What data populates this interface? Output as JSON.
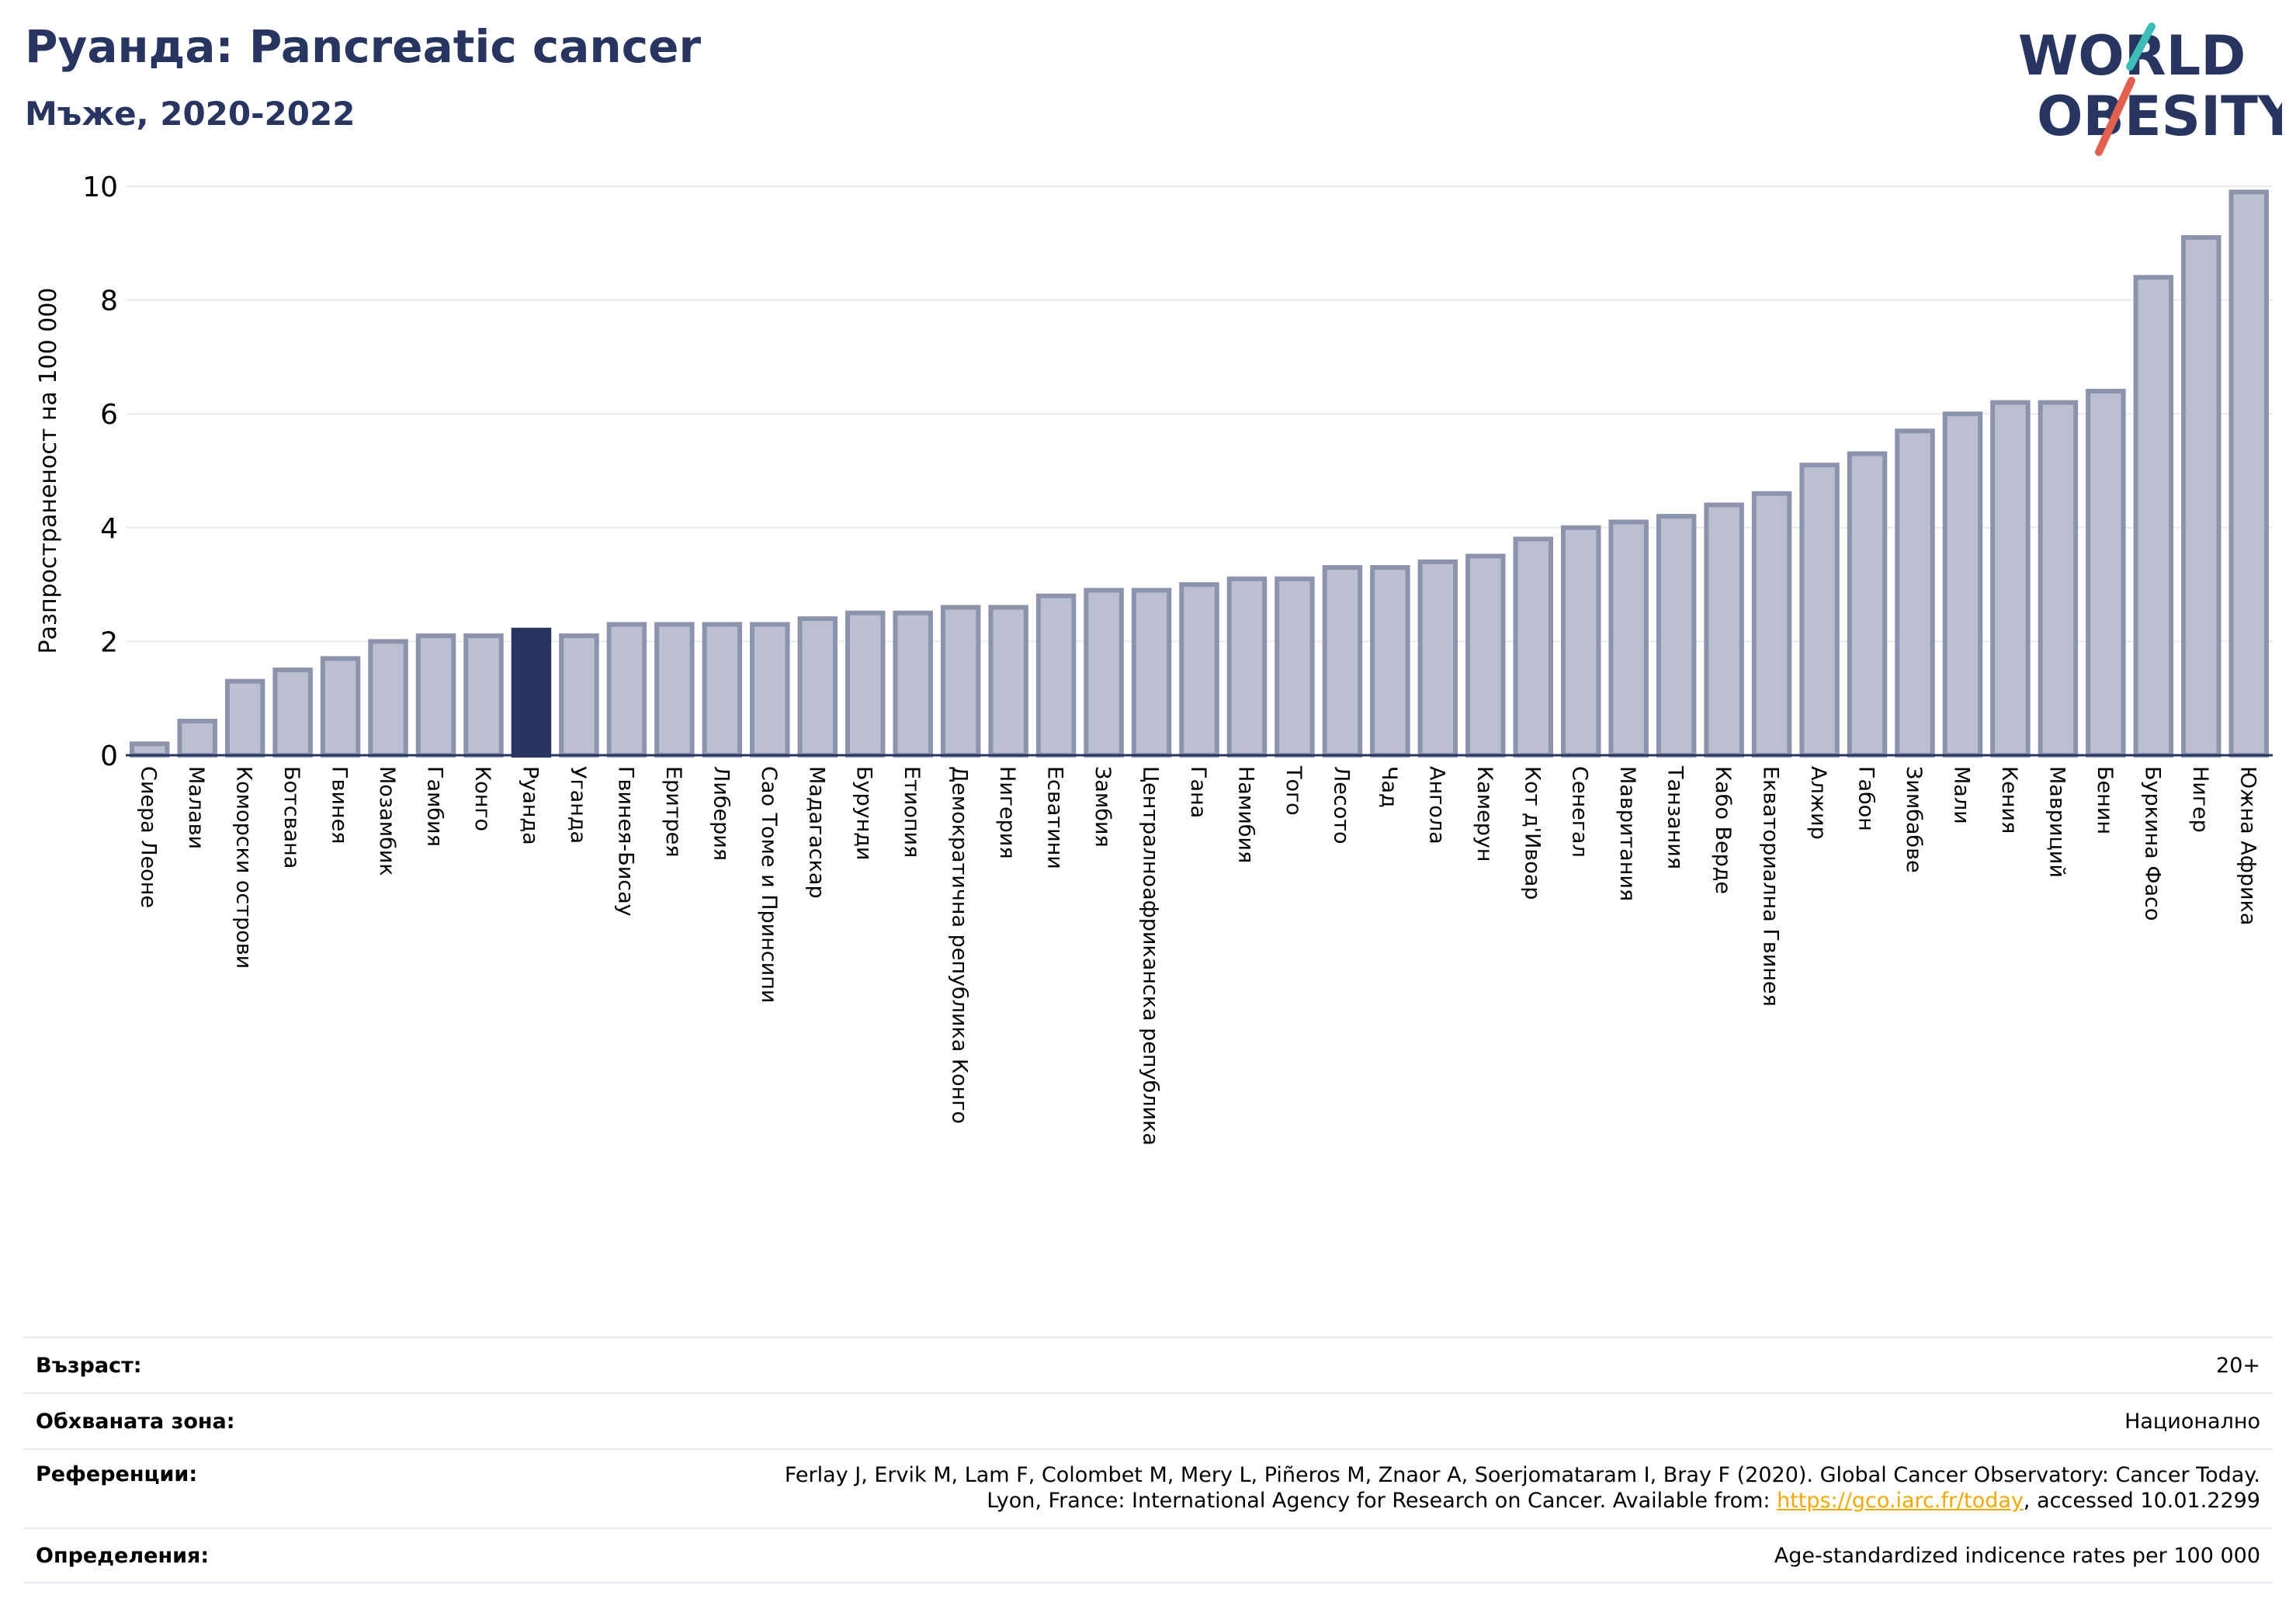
{
  "header": {
    "title": "Руанда: Pancreatic cancer",
    "subtitle": "Мъже, 2020-2022"
  },
  "logo": {
    "line1": "WORLD",
    "line2": "OBESITY",
    "colors": {
      "text": "#283560",
      "slash_teal": "#3dbdb7",
      "slash_red": "#e2604f"
    }
  },
  "colors": {
    "bar_fill": "#bbbfcf",
    "bar_stroke": "#8c93ad",
    "highlight": "#283560",
    "grid": "#e8eaf0"
  },
  "chart_data": {
    "type": "bar",
    "ylabel": "Разпространеност  на 100 000",
    "ylim": [
      0,
      10
    ],
    "yticks": [
      0,
      2,
      4,
      6,
      8,
      10
    ],
    "highlight": "Руанда",
    "categories": [
      "Сиера Леоне",
      "Малави",
      "Коморски острови",
      "Ботсвана",
      "Гвинея",
      "Мозамбик",
      "Гамбия",
      "Конго",
      "Руанда",
      "Уганда",
      "Гвинея-Бисау",
      "Еритрея",
      "Либерия",
      "Сао Томе и Принсипи",
      "Мадагаскар",
      "Бурунди",
      "Етиопия",
      "Демократична република Конго",
      "Нигерия",
      "Есватини",
      "Замбия",
      "Централноафриканска република",
      "Гана",
      "Намибия",
      "Того",
      "Лесото",
      "Чад",
      "Ангола",
      "Камерун",
      "Кот д'Ивоар",
      "Сенегал",
      "Мавритания",
      "Танзания",
      "Кабо Верде",
      "Екваториална Гвинея",
      "Алжир",
      "Габон",
      "Зимбабве",
      "Мали",
      "Кения",
      "Мавриций",
      "Бенин",
      "Буркина Фасо",
      "Нигер",
      "Южна Африка"
    ],
    "values": [
      0.2,
      0.6,
      1.3,
      1.5,
      1.7,
      2.0,
      2.1,
      2.1,
      2.2,
      2.1,
      2.3,
      2.3,
      2.3,
      2.3,
      2.4,
      2.5,
      2.5,
      2.6,
      2.6,
      2.8,
      2.9,
      2.9,
      3.0,
      3.1,
      3.1,
      3.3,
      3.3,
      3.4,
      3.5,
      3.8,
      4.0,
      4.1,
      4.2,
      4.4,
      4.6,
      5.1,
      5.3,
      5.7,
      6.0,
      6.2,
      6.2,
      6.4,
      8.4,
      9.1,
      9.9
    ]
  },
  "footer": {
    "age": {
      "label": "Възраст:",
      "value": "20+"
    },
    "area": {
      "label": "Обхваната зона:",
      "value": "Национално"
    },
    "refs": {
      "label": "Референции:",
      "line1": "Ferlay J, Ervik M, Lam F, Colombet M, Mery L, Piñeros M, Znaor A, Soerjomataram I, Bray F (2020). Global Cancer Observatory: Cancer Today.",
      "line2_prefix": "Lyon, France: International Agency for Research on Cancer. Available from: ",
      "link": "https://gco.iarc.fr/today",
      "line2_suffix": ", accessed 10.01.2299"
    },
    "defs": {
      "label": "Определения:",
      "value": "Age-standardized indicence rates per 100 000"
    }
  }
}
